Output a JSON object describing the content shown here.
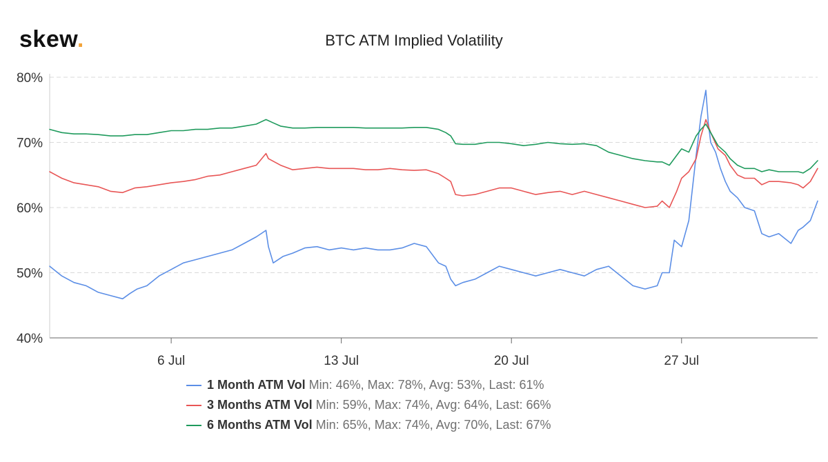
{
  "logo": {
    "text": "skew",
    "dot": "."
  },
  "chart_data": {
    "type": "line",
    "title": "BTC ATM Implied Volatility",
    "xlabel": "",
    "ylabel": "",
    "ylim": [
      40,
      80
    ],
    "xlim": [
      1,
      32.6
    ],
    "y_ticks": [
      {
        "value": 80,
        "label": "80%"
      },
      {
        "value": 70,
        "label": "70%"
      },
      {
        "value": 60,
        "label": "60%"
      },
      {
        "value": 50,
        "label": "50%"
      },
      {
        "value": 40,
        "label": "40%"
      }
    ],
    "x_ticks": [
      {
        "value": 6,
        "label": "6 Jul"
      },
      {
        "value": 13,
        "label": "13 Jul"
      },
      {
        "value": 20,
        "label": "20 Jul"
      },
      {
        "value": 27,
        "label": "27 Jul"
      }
    ],
    "x_unit": "day of July 2020",
    "series": [
      {
        "name": "1 Month ATM Vol",
        "stats": "Min: 46%, Max: 78%, Avg: 53%, Last: 61%",
        "color": "#5b8ee6",
        "x": [
          1.0,
          1.5,
          2.0,
          2.5,
          3.0,
          3.5,
          4.0,
          4.3,
          4.6,
          5.0,
          5.5,
          6.0,
          6.5,
          7.0,
          7.5,
          8.0,
          8.5,
          9.0,
          9.5,
          9.9,
          10.0,
          10.2,
          10.6,
          11.0,
          11.5,
          12.0,
          12.5,
          13.0,
          13.5,
          14.0,
          14.5,
          15.0,
          15.5,
          16.0,
          16.5,
          17.0,
          17.3,
          17.5,
          17.7,
          18.0,
          18.5,
          19.0,
          19.5,
          20.0,
          20.5,
          21.0,
          21.5,
          22.0,
          22.5,
          23.0,
          23.5,
          24.0,
          24.5,
          25.0,
          25.5,
          26.0,
          26.2,
          26.5,
          26.7,
          27.0,
          27.3,
          27.6,
          27.8,
          28.0,
          28.1,
          28.2,
          28.4,
          28.6,
          28.8,
          29.0,
          29.3,
          29.6,
          30.0,
          30.3,
          30.6,
          31.0,
          31.5,
          31.8,
          32.0,
          32.3,
          32.6
        ],
        "values": [
          51.0,
          49.5,
          48.5,
          48.0,
          47.0,
          46.5,
          46.0,
          46.8,
          47.5,
          48.0,
          49.5,
          50.5,
          51.5,
          52.0,
          52.5,
          53.0,
          53.5,
          54.5,
          55.5,
          56.5,
          54.0,
          51.5,
          52.5,
          53.0,
          53.8,
          54.0,
          53.5,
          53.8,
          53.5,
          53.8,
          53.5,
          53.5,
          53.8,
          54.5,
          54.0,
          51.5,
          51.0,
          49.0,
          48.0,
          48.5,
          49.0,
          50.0,
          51.0,
          50.5,
          50.0,
          49.5,
          50.0,
          50.5,
          50.0,
          49.5,
          50.5,
          51.0,
          49.5,
          48.0,
          47.5,
          48.0,
          50.0,
          50.0,
          55.0,
          54.0,
          58.0,
          68.0,
          74.0,
          78.0,
          73.0,
          70.0,
          68.5,
          66.0,
          64.0,
          62.5,
          61.5,
          60.0,
          59.5,
          56.0,
          55.5,
          56.0,
          54.5,
          56.5,
          57.0,
          58.0,
          61.0
        ]
      },
      {
        "name": "3 Months ATM Vol",
        "stats": "Min: 59%, Max: 74%, Avg: 64%, Last: 66%",
        "color": "#e85555",
        "x": [
          1.0,
          1.5,
          2.0,
          2.5,
          3.0,
          3.5,
          4.0,
          4.5,
          5.0,
          5.5,
          6.0,
          6.5,
          7.0,
          7.5,
          8.0,
          8.5,
          9.0,
          9.5,
          9.9,
          10.0,
          10.5,
          11.0,
          11.5,
          12.0,
          12.5,
          13.0,
          13.5,
          14.0,
          14.5,
          15.0,
          15.5,
          16.0,
          16.5,
          17.0,
          17.3,
          17.5,
          17.7,
          18.0,
          18.5,
          19.0,
          19.5,
          20.0,
          20.5,
          21.0,
          21.5,
          22.0,
          22.5,
          23.0,
          23.5,
          24.0,
          24.5,
          25.0,
          25.5,
          26.0,
          26.2,
          26.5,
          26.8,
          27.0,
          27.3,
          27.6,
          27.8,
          28.0,
          28.2,
          28.5,
          28.8,
          29.0,
          29.3,
          29.6,
          30.0,
          30.3,
          30.6,
          31.0,
          31.5,
          31.8,
          32.0,
          32.3,
          32.6
        ],
        "values": [
          65.5,
          64.5,
          63.8,
          63.5,
          63.2,
          62.5,
          62.3,
          63.0,
          63.2,
          63.5,
          63.8,
          64.0,
          64.3,
          64.8,
          65.0,
          65.5,
          66.0,
          66.5,
          68.3,
          67.5,
          66.5,
          65.8,
          66.0,
          66.2,
          66.0,
          66.0,
          66.0,
          65.8,
          65.8,
          66.0,
          65.8,
          65.7,
          65.8,
          65.2,
          64.5,
          64.0,
          62.0,
          61.8,
          62.0,
          62.5,
          63.0,
          63.0,
          62.5,
          62.0,
          62.3,
          62.5,
          62.0,
          62.5,
          62.0,
          61.5,
          61.0,
          60.5,
          60.0,
          60.2,
          61.0,
          60.0,
          62.5,
          64.5,
          65.5,
          67.5,
          71.0,
          73.5,
          71.5,
          69.0,
          68.0,
          66.5,
          65.0,
          64.5,
          64.5,
          63.5,
          64.0,
          64.0,
          63.8,
          63.5,
          63.0,
          64.0,
          66.0
        ]
      },
      {
        "name": "6 Months ATM Vol",
        "stats": "Min: 65%, Max: 74%, Avg: 70%, Last: 67%",
        "color": "#1e9a5c",
        "x": [
          1.0,
          1.5,
          2.0,
          2.5,
          3.0,
          3.5,
          4.0,
          4.5,
          5.0,
          5.5,
          6.0,
          6.5,
          7.0,
          7.5,
          8.0,
          8.5,
          9.0,
          9.5,
          9.9,
          10.2,
          10.5,
          11.0,
          11.5,
          12.0,
          12.5,
          13.0,
          13.5,
          14.0,
          14.5,
          15.0,
          15.5,
          16.0,
          16.5,
          17.0,
          17.3,
          17.5,
          17.7,
          18.0,
          18.5,
          19.0,
          19.5,
          20.0,
          20.5,
          21.0,
          21.5,
          22.0,
          22.5,
          23.0,
          23.5,
          24.0,
          24.5,
          25.0,
          25.5,
          26.0,
          26.2,
          26.5,
          26.8,
          27.0,
          27.3,
          27.6,
          27.8,
          28.0,
          28.2,
          28.5,
          28.8,
          29.0,
          29.3,
          29.6,
          30.0,
          30.3,
          30.6,
          31.0,
          31.5,
          31.8,
          32.0,
          32.3,
          32.6
        ],
        "values": [
          72.0,
          71.5,
          71.3,
          71.3,
          71.2,
          71.0,
          71.0,
          71.2,
          71.2,
          71.5,
          71.8,
          71.8,
          72.0,
          72.0,
          72.2,
          72.2,
          72.5,
          72.8,
          73.5,
          73.0,
          72.5,
          72.2,
          72.2,
          72.3,
          72.3,
          72.3,
          72.3,
          72.2,
          72.2,
          72.2,
          72.2,
          72.3,
          72.3,
          72.0,
          71.5,
          71.0,
          69.8,
          69.7,
          69.7,
          70.0,
          70.0,
          69.8,
          69.5,
          69.7,
          70.0,
          69.8,
          69.7,
          69.8,
          69.5,
          68.5,
          68.0,
          67.5,
          67.2,
          67.0,
          67.0,
          66.5,
          68.0,
          69.0,
          68.5,
          71.0,
          72.0,
          72.8,
          71.5,
          69.5,
          68.5,
          67.5,
          66.5,
          66.0,
          66.0,
          65.5,
          65.8,
          65.5,
          65.5,
          65.5,
          65.3,
          66.0,
          67.2
        ]
      }
    ]
  }
}
